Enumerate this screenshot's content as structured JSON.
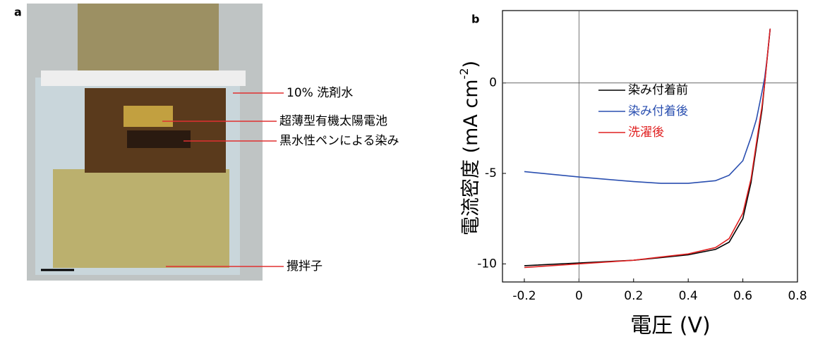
{
  "panel_a": {
    "label": "a",
    "annotations": [
      "10% 洗剤水",
      "超薄型有機太陽電池",
      "黒水性ペンによる染み",
      "攪拌子"
    ]
  },
  "chart_data": {
    "type": "line",
    "panel_label": "b",
    "x_label": "電圧 (V)",
    "y_label": "電流密度 (mA cm",
    "y_label_sup": "-2",
    "y_label_end": ")",
    "x": [
      -0.2,
      0,
      0.2,
      0.3,
      0.4,
      0.5,
      0.55,
      0.6,
      0.63,
      0.65,
      0.67,
      0.68,
      0.69,
      0.7
    ],
    "series": [
      {
        "name": "染み付着前",
        "color": "#000000",
        "values": [
          -10.1,
          -9.95,
          -9.8,
          -9.65,
          -9.5,
          -9.2,
          -8.8,
          -7.5,
          -5.5,
          -3.5,
          -1.5,
          0,
          1.5,
          3
        ]
      },
      {
        "name": "染み付着後",
        "color": "#2a4fb0",
        "values": [
          -4.9,
          -5.2,
          -5.45,
          -5.55,
          -5.55,
          -5.4,
          -5.1,
          -4.3,
          -3,
          -2,
          -0.5,
          0.3,
          1.5,
          3
        ]
      },
      {
        "name": "洗濯後",
        "color": "#e02020",
        "values": [
          -10.2,
          -10.0,
          -9.8,
          -9.62,
          -9.45,
          -9.1,
          -8.6,
          -7.2,
          -5.3,
          -3.3,
          -1.3,
          0,
          1.5,
          3
        ]
      }
    ],
    "xlim": [
      -0.28,
      0.8
    ],
    "xticks": [
      -0.2,
      0,
      0.2,
      0.4,
      0.6,
      0.8
    ],
    "ylim": [
      -11,
      4
    ],
    "yticks": [
      -10,
      -5,
      0
    ],
    "zero_lines": true,
    "legend": "center"
  }
}
